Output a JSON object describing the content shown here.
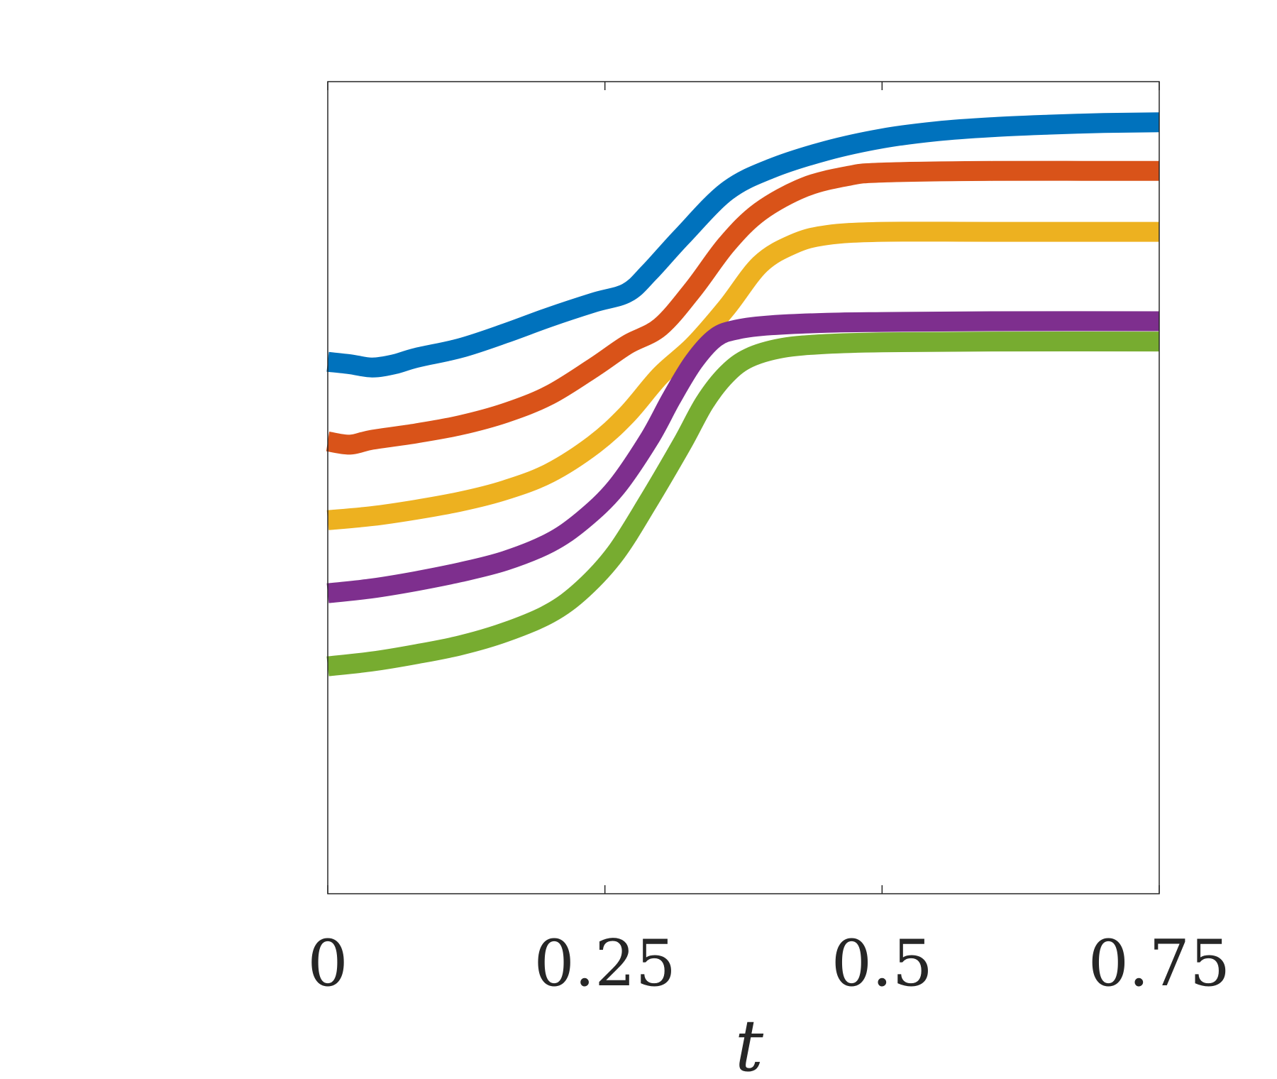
{
  "chart_data": {
    "type": "line",
    "title": "",
    "xlabel": "t",
    "ylabel": "",
    "xlim": [
      0,
      0.75
    ],
    "ylim": [
      0,
      1
    ],
    "xticks": [
      0,
      0.25,
      0.5,
      0.75
    ],
    "xtick_labels": [
      "0",
      "0.25",
      "0.5",
      "0.75"
    ],
    "yticks": [],
    "grid": false,
    "legend": "none",
    "series": [
      {
        "color": "#0072BD",
        "points": [
          [
            0,
            0.655
          ],
          [
            0.02,
            0.652
          ],
          [
            0.04,
            0.648
          ],
          [
            0.06,
            0.652
          ],
          [
            0.08,
            0.66
          ],
          [
            0.12,
            0.672
          ],
          [
            0.16,
            0.69
          ],
          [
            0.2,
            0.71
          ],
          [
            0.24,
            0.728
          ],
          [
            0.27,
            0.74
          ],
          [
            0.29,
            0.765
          ],
          [
            0.32,
            0.81
          ],
          [
            0.36,
            0.865
          ],
          [
            0.4,
            0.893
          ],
          [
            0.45,
            0.915
          ],
          [
            0.5,
            0.93
          ],
          [
            0.55,
            0.939
          ],
          [
            0.6,
            0.944
          ],
          [
            0.65,
            0.947
          ],
          [
            0.7,
            0.949
          ],
          [
            0.75,
            0.95
          ]
        ]
      },
      {
        "color": "#D95319",
        "points": [
          [
            0,
            0.557
          ],
          [
            0.02,
            0.553
          ],
          [
            0.04,
            0.559
          ],
          [
            0.08,
            0.567
          ],
          [
            0.12,
            0.577
          ],
          [
            0.16,
            0.592
          ],
          [
            0.2,
            0.614
          ],
          [
            0.24,
            0.648
          ],
          [
            0.27,
            0.676
          ],
          [
            0.3,
            0.698
          ],
          [
            0.33,
            0.745
          ],
          [
            0.36,
            0.8
          ],
          [
            0.39,
            0.84
          ],
          [
            0.43,
            0.87
          ],
          [
            0.47,
            0.884
          ],
          [
            0.5,
            0.888
          ],
          [
            0.6,
            0.89
          ],
          [
            0.75,
            0.89
          ]
        ]
      },
      {
        "color": "#EDB120",
        "points": [
          [
            0,
            0.46
          ],
          [
            0.04,
            0.465
          ],
          [
            0.08,
            0.473
          ],
          [
            0.12,
            0.483
          ],
          [
            0.16,
            0.497
          ],
          [
            0.2,
            0.518
          ],
          [
            0.24,
            0.553
          ],
          [
            0.27,
            0.59
          ],
          [
            0.3,
            0.638
          ],
          [
            0.33,
            0.675
          ],
          [
            0.36,
            0.722
          ],
          [
            0.39,
            0.775
          ],
          [
            0.42,
            0.8
          ],
          [
            0.45,
            0.811
          ],
          [
            0.5,
            0.815
          ],
          [
            0.6,
            0.815
          ],
          [
            0.75,
            0.815
          ]
        ]
      },
      {
        "color": "#7E2F8E",
        "points": [
          [
            0,
            0.37
          ],
          [
            0.04,
            0.376
          ],
          [
            0.08,
            0.385
          ],
          [
            0.12,
            0.396
          ],
          [
            0.16,
            0.41
          ],
          [
            0.2,
            0.432
          ],
          [
            0.23,
            0.46
          ],
          [
            0.26,
            0.5
          ],
          [
            0.29,
            0.56
          ],
          [
            0.31,
            0.61
          ],
          [
            0.33,
            0.655
          ],
          [
            0.35,
            0.685
          ],
          [
            0.37,
            0.695
          ],
          [
            0.4,
            0.7
          ],
          [
            0.45,
            0.703
          ],
          [
            0.5,
            0.704
          ],
          [
            0.6,
            0.705
          ],
          [
            0.75,
            0.705
          ]
        ]
      },
      {
        "color": "#77AC30",
        "points": [
          [
            0,
            0.28
          ],
          [
            0.04,
            0.286
          ],
          [
            0.08,
            0.295
          ],
          [
            0.12,
            0.306
          ],
          [
            0.16,
            0.322
          ],
          [
            0.2,
            0.345
          ],
          [
            0.23,
            0.375
          ],
          [
            0.26,
            0.42
          ],
          [
            0.29,
            0.485
          ],
          [
            0.32,
            0.555
          ],
          [
            0.34,
            0.605
          ],
          [
            0.36,
            0.64
          ],
          [
            0.38,
            0.66
          ],
          [
            0.41,
            0.672
          ],
          [
            0.45,
            0.677
          ],
          [
            0.5,
            0.679
          ],
          [
            0.6,
            0.68
          ],
          [
            0.75,
            0.68
          ]
        ]
      }
    ]
  }
}
